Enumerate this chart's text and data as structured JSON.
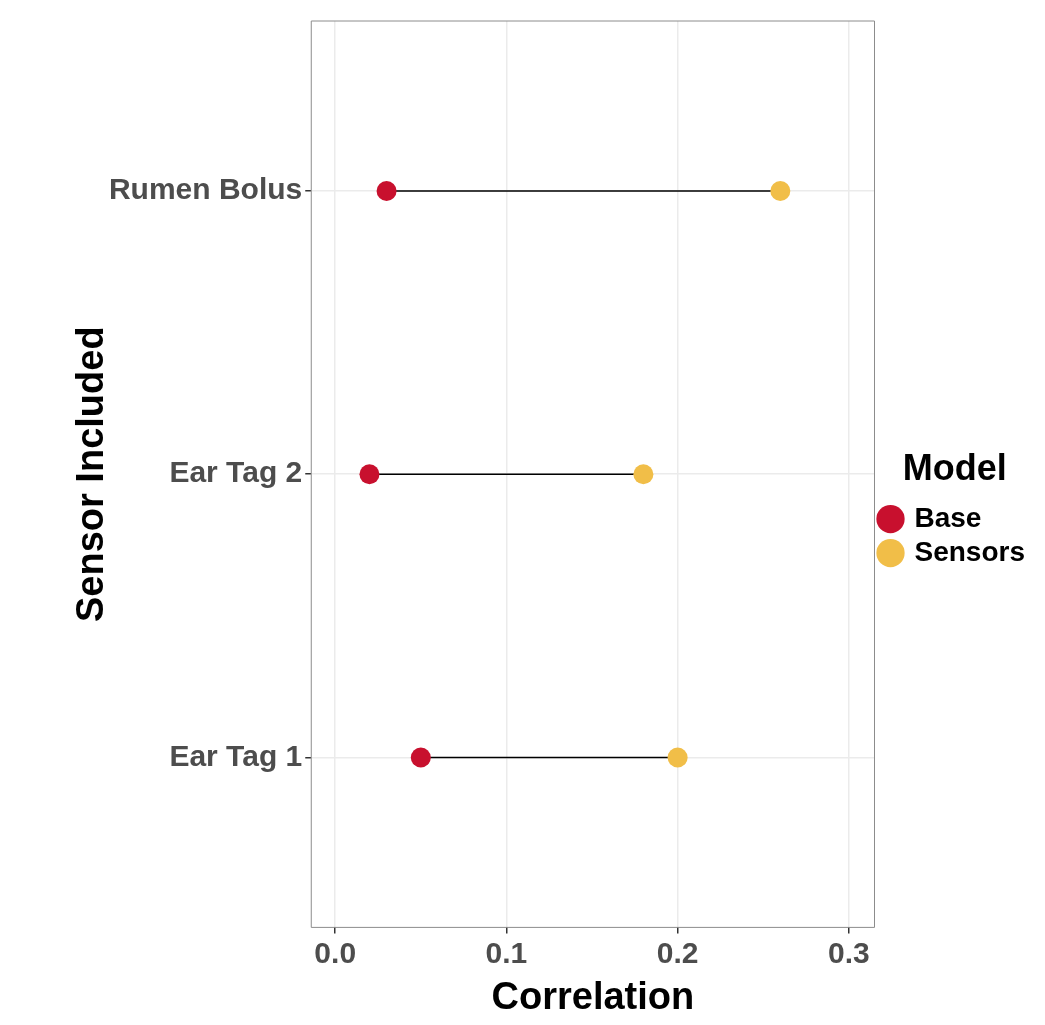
{
  "chart_data": {
    "type": "scatter",
    "orientation": "horizontal",
    "xlabel": "Correlation",
    "ylabel": "Sensor Included",
    "legend_title": "Model",
    "categories": [
      "Rumen Bolus",
      "Ear Tag 2",
      "Ear Tag 1"
    ],
    "series": [
      {
        "name": "Base",
        "color": "#c8102e",
        "values": [
          0.03,
          0.02,
          0.05
        ]
      },
      {
        "name": "Sensors",
        "color": "#f1be48",
        "values": [
          0.26,
          0.18,
          0.2
        ]
      }
    ],
    "xlim": [
      -0.014,
      0.315
    ],
    "xticks": [
      {
        "value": 0,
        "label": "0.0"
      },
      0.1,
      0.2,
      0.3
    ],
    "grid": true,
    "legend": "right",
    "marker": "circle"
  }
}
